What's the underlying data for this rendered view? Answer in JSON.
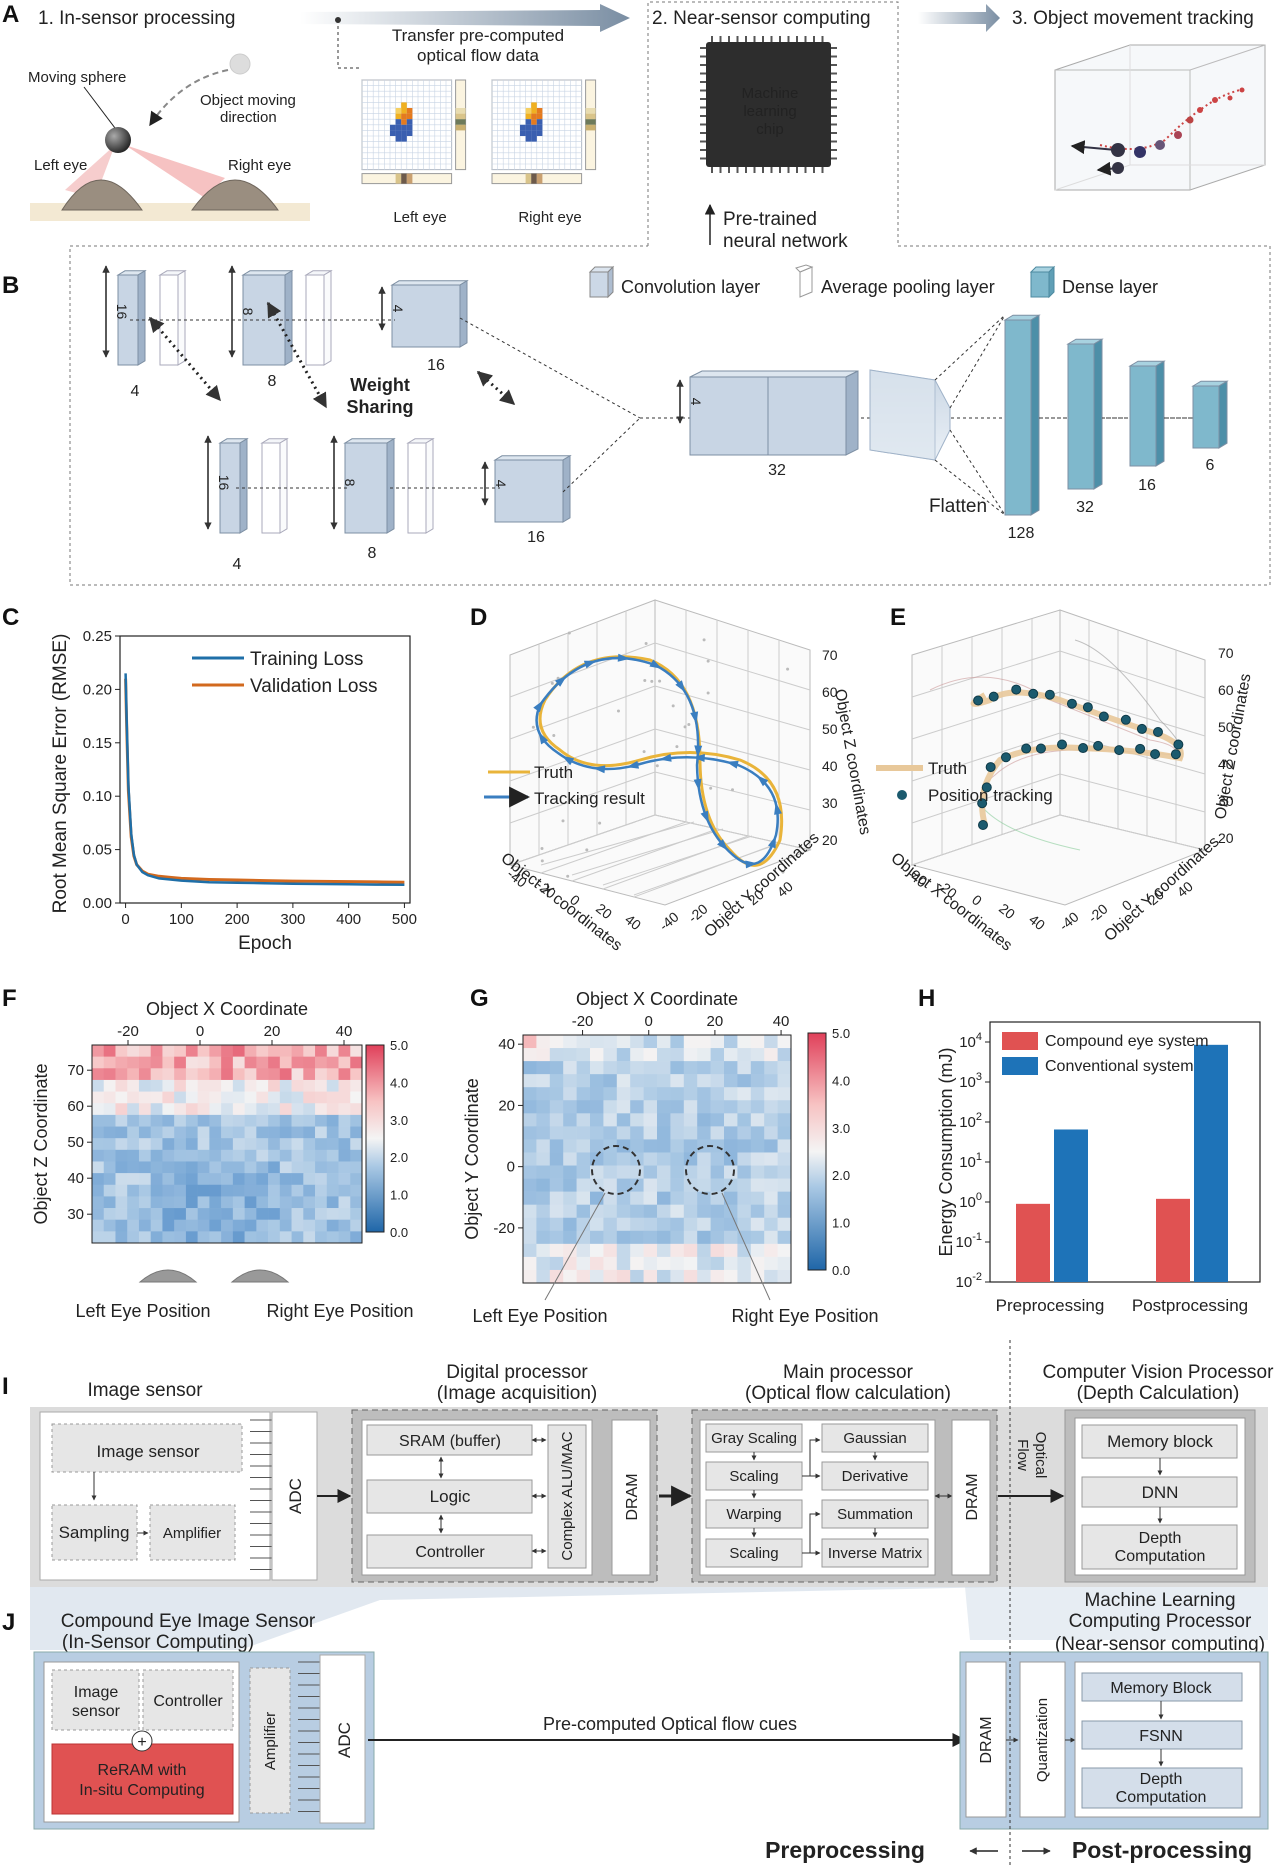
{
  "figure": {
    "panel_labels": [
      "A",
      "B",
      "C",
      "D",
      "E",
      "F",
      "G",
      "H",
      "I",
      "J"
    ]
  },
  "panel_a": {
    "step1": "1. In-sensor processing",
    "transfer_line1": "Transfer pre-computed",
    "transfer_line2": "optical flow data",
    "step2": "2. Near-sensor computing",
    "step3": "3. Object movement tracking",
    "moving_sphere": "Moving sphere",
    "direction_line1": "Object moving",
    "direction_line2": "direction",
    "left_eye": "Left eye",
    "right_eye": "Right eye",
    "flow_left": "Left eye",
    "flow_right": "Right eye",
    "chip_line1": "Machine",
    "chip_line2": "learning",
    "chip_line3": "chip",
    "pretrained_line1": "Pre-trained",
    "pretrained_line2": "neural network"
  },
  "panel_b": {
    "legend_conv": "Convolution layer",
    "legend_pool": "Average pooling layer",
    "legend_dense": "Dense layer",
    "weight_line1": "Weight",
    "weight_line2": "Sharing",
    "flatten": "Flatten",
    "dim_16": "16",
    "dim_8": "8",
    "dim_4": "4",
    "lbl_4": "4",
    "lbl_8": "8",
    "lbl_16": "16",
    "lbl_32": "32",
    "dense_128": "128",
    "dense_32": "32",
    "dense_16": "16",
    "dense_6": "6"
  },
  "panel_d": {
    "truth": "Truth",
    "tracking": "Tracking result",
    "xlabel": "Object X coordinates",
    "ylabel": "Object Y coordinates",
    "zlabel": "Object Z coordinates"
  },
  "panel_e": {
    "truth": "Truth",
    "tracking": "Position tracking",
    "xlabel": "Object  X coordinates",
    "ylabel": "Object  Y coordinates",
    "zlabel": "Object  Z coordinates"
  },
  "panel_f_g": {
    "f_left_eye": "Left Eye Position",
    "f_right_eye": "Right Eye Position",
    "g_left_eye": "Left Eye Position",
    "g_right_eye": "Right Eye Position"
  },
  "panel_i": {
    "image_sensor_title": "Image sensor",
    "image_sensor_box": "Image sensor",
    "sampling": "Sampling",
    "amplifier": "Amplifier",
    "adc": "ADC",
    "digital_title1": "Digital processor",
    "digital_title2": "(Image acquisition)",
    "sram": "SRAM (buffer)",
    "logic": "Logic",
    "controller": "Controller",
    "alu": "Complex ALU/MAC",
    "dram1": "DRAM",
    "main_title1": "Main processor",
    "main_title2": "(Optical flow calculation)",
    "gray": "Gray Scaling",
    "scaling1": "Scaling",
    "warping": "Warping",
    "scaling2": "Scaling",
    "gaussian": "Gaussian",
    "derivative": "Derivative",
    "summation": "Summation",
    "inverse": "Inverse Matrix",
    "dram2": "DRAM",
    "optical_flow_line1": "Optical",
    "optical_flow_line2": "Flow",
    "cv_title1": "Computer Vision Processor",
    "cv_title2": "(Depth Calculation)",
    "memory": "Memory block",
    "dnn": "DNN",
    "depth_line1": "Depth",
    "depth_line2": "Computation"
  },
  "panel_j": {
    "title1": "Compound Eye Image Sensor",
    "title2": "(In-Sensor Computing)",
    "image_sensor_line1": "Image",
    "image_sensor_line2": "sensor",
    "controller": "Controller",
    "reram_line1": "ReRAM with",
    "reram_line2": "In-situ Computing",
    "plus": "+",
    "amplifier": "Amplifier",
    "adc": "ADC",
    "cues": "Pre-computed Optical flow cues",
    "ml_title1": "Machine Learning",
    "ml_title2": "Computing Processor",
    "ml_title3": "(Near-sensor computing)",
    "dram": "DRAM",
    "quantization": "Quantization",
    "memory": "Memory Block",
    "fsnn": "FSNN",
    "depth_line1": "Depth",
    "depth_line2": "Computation",
    "preprocessing": "Preprocessing",
    "postprocessing": "Post-processing"
  },
  "colors": {
    "training": "#1f6fa8",
    "validation": "#d2691e",
    "truth": "#e9b43a",
    "tracking": "#3a7ec0",
    "compound": "#e05252",
    "conventional": "#1e73b8",
    "reram": "#e05252"
  },
  "chart_data": [
    {
      "id": "C",
      "type": "line",
      "xlabel": "Epoch",
      "ylabel": "Root Mean Square Error (RMSE)",
      "xlim": [
        -10,
        510
      ],
      "ylim": [
        0,
        0.25
      ],
      "xticks": [
        "0",
        "100",
        "200",
        "300",
        "400",
        "500"
      ],
      "xtick_values": [
        0,
        100,
        200,
        300,
        400,
        500
      ],
      "yticks": [
        "0.00",
        "0.05",
        "0.10",
        "0.15",
        "0.20",
        "0.25"
      ],
      "ytick_values": [
        0,
        0.05,
        0.1,
        0.15,
        0.2,
        0.25
      ],
      "series": [
        {
          "name": "Training Loss",
          "x": [
            0,
            2,
            5,
            10,
            15,
            20,
            30,
            40,
            60,
            80,
            100,
            150,
            200,
            250,
            300,
            350,
            400,
            450,
            500
          ],
          "y": [
            0.215,
            0.17,
            0.11,
            0.065,
            0.045,
            0.036,
            0.029,
            0.026,
            0.023,
            0.022,
            0.021,
            0.0195,
            0.019,
            0.0185,
            0.018,
            0.0178,
            0.0175,
            0.0172,
            0.017
          ]
        },
        {
          "name": "Validation Loss",
          "x": [
            0,
            2,
            5,
            10,
            15,
            20,
            30,
            40,
            60,
            80,
            100,
            150,
            200,
            250,
            300,
            350,
            400,
            450,
            500
          ],
          "y": [
            0.21,
            0.165,
            0.105,
            0.062,
            0.044,
            0.036,
            0.03,
            0.027,
            0.025,
            0.024,
            0.023,
            0.022,
            0.0215,
            0.021,
            0.0205,
            0.0202,
            0.02,
            0.0198,
            0.0195
          ]
        }
      ]
    },
    {
      "id": "D",
      "type": "line",
      "xlabel": "Object X coordinates",
      "ylabel": "Object Y coordinates",
      "zlabel": "Object Z coordinates",
      "xticks": [
        "-40",
        "-20",
        "0",
        "20",
        "40"
      ],
      "yticks": [
        "-40",
        "-20",
        "0",
        "20",
        "40"
      ],
      "zticks": [
        "20",
        "30",
        "40",
        "50",
        "60",
        "70"
      ],
      "series": [
        {
          "name": "Truth"
        },
        {
          "name": "Tracking result"
        }
      ]
    },
    {
      "id": "E",
      "type": "scatter",
      "xlabel": "Object X coordinates",
      "ylabel": "Object Y coordinates",
      "zlabel": "Object Z coordinates",
      "xticks": [
        "-40",
        "-20",
        "0",
        "20",
        "40"
      ],
      "yticks": [
        "-40",
        "-20",
        "0",
        "20",
        "40"
      ],
      "zticks": [
        "20",
        "30",
        "40",
        "50",
        "60",
        "70"
      ],
      "series": [
        {
          "name": "Truth"
        },
        {
          "name": "Position tracking"
        }
      ]
    },
    {
      "id": "F",
      "type": "heatmap",
      "xlabel": "Object X Coordinate",
      "ylabel": "Object Z Coordinate",
      "xticks": [
        "-20",
        "0",
        "20",
        "40"
      ],
      "xtick_values": [
        -20,
        0,
        20,
        40
      ],
      "xlim": [
        -30,
        45
      ],
      "yticks": [
        "30",
        "40",
        "50",
        "60",
        "70"
      ],
      "ytick_values": [
        30,
        40,
        50,
        60,
        70
      ],
      "ylim": [
        22,
        77
      ],
      "colorbar_ticks": [
        "0.0",
        "1.0",
        "2.0",
        "3.0",
        "4.0",
        "5.0"
      ],
      "colorbar_range": [
        0,
        5
      ]
    },
    {
      "id": "G",
      "type": "heatmap",
      "xlabel": "Object X Coordinate",
      "ylabel": "Object Y Coordinate",
      "xticks": [
        "-20",
        "0",
        "20",
        "40"
      ],
      "xtick_values": [
        -20,
        0,
        20,
        40
      ],
      "xlim": [
        -38,
        43
      ],
      "yticks": [
        "-20",
        "0",
        "20",
        "40"
      ],
      "ytick_values": [
        -20,
        0,
        20,
        40
      ],
      "ylim": [
        -38,
        43
      ],
      "colorbar_ticks": [
        "0.0",
        "1.0",
        "2.0",
        "3.0",
        "4.0",
        "5.0"
      ],
      "colorbar_range": [
        0,
        5
      ]
    },
    {
      "id": "H",
      "type": "bar",
      "ylabel": "Energy Consumption (mJ)",
      "categories": [
        "Preprocessing",
        "Postprocessing"
      ],
      "yscale": "log",
      "ylim_exp": [
        -2,
        4.5
      ],
      "ytick_exps": [
        -2,
        -1,
        0,
        1,
        2,
        3,
        4
      ],
      "series": [
        {
          "name": "Compound eye system",
          "values": [
            0.9,
            1.2
          ]
        },
        {
          "name": "Conventional system",
          "values": [
            65,
            8500
          ]
        }
      ]
    }
  ]
}
